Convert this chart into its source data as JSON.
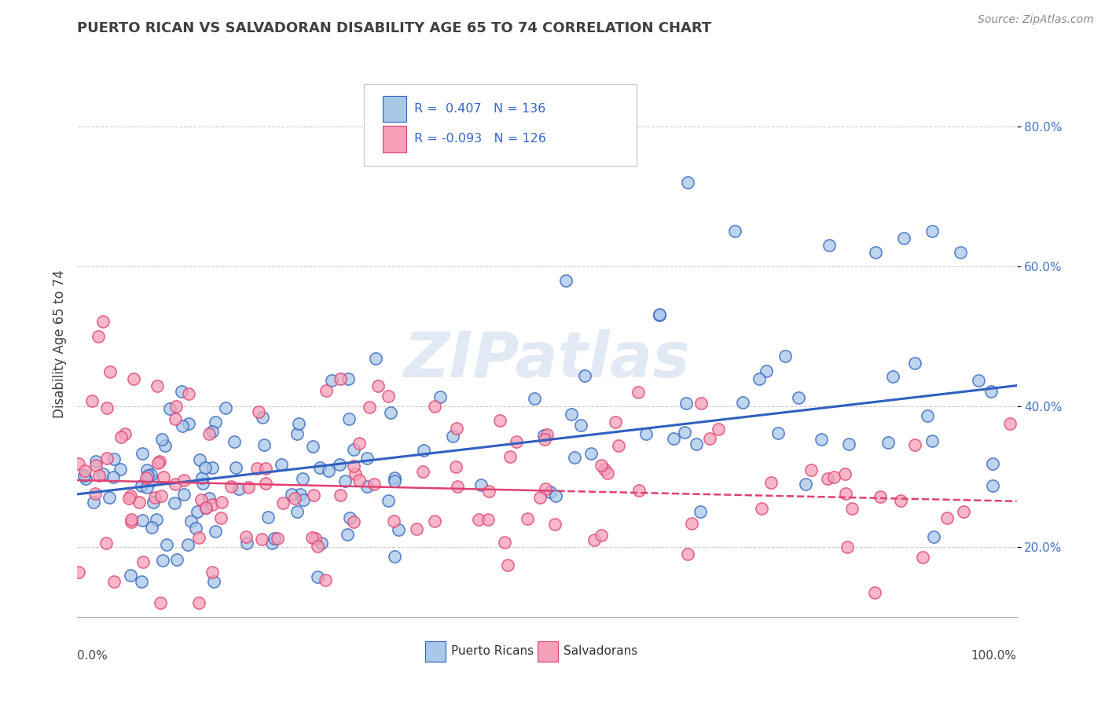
{
  "title": "PUERTO RICAN VS SALVADORAN DISABILITY AGE 65 TO 74 CORRELATION CHART",
  "source": "Source: ZipAtlas.com",
  "ylabel": "Disability Age 65 to 74",
  "xlim": [
    0.0,
    1.0
  ],
  "ylim": [
    0.1,
    0.88
  ],
  "yticks": [
    0.2,
    0.4,
    0.6,
    0.8
  ],
  "ytick_labels": [
    "20.0%",
    "40.0%",
    "60.0%",
    "80.0%"
  ],
  "color_blue": "#a8c8e8",
  "color_pink": "#f4a0b8",
  "line_blue": "#3060c0",
  "line_pink": "#e04070",
  "line_pink_dash": "#e07090",
  "watermark": "ZIPatlas",
  "background_color": "#ffffff",
  "title_color": "#404040",
  "title_fontsize": 13,
  "ytick_color": "#4472c4",
  "ylabel_color": "#404040",
  "source_color": "#888888"
}
